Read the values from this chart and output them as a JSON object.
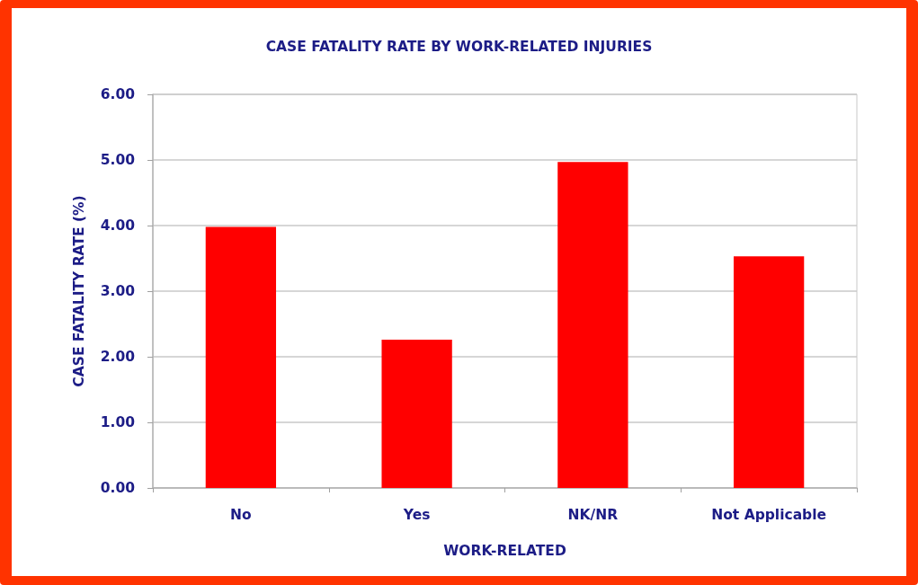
{
  "chart_data": {
    "type": "bar",
    "title": "CASE FATALITY RATE BY WORK-RELATED INJURIES",
    "xlabel": "WORK-RELATED",
    "ylabel": "CASE FATALITY RATE (%)",
    "categories": [
      "No",
      "Yes",
      "NK/NR",
      "Not Applicable"
    ],
    "values": [
      3.98,
      2.26,
      4.97,
      3.53
    ],
    "color": "#ff0000",
    "ylim": [
      0,
      6
    ],
    "yticks": [
      {
        "value": 0,
        "label": "0.00"
      },
      {
        "value": 1,
        "label": "1.00"
      },
      {
        "value": 2,
        "label": "2.00"
      },
      {
        "value": 3,
        "label": "3.00"
      },
      {
        "value": 4,
        "label": "4.00"
      },
      {
        "value": 5,
        "label": "5.00"
      },
      {
        "value": 6,
        "label": "6.00"
      }
    ],
    "grid": "y"
  }
}
